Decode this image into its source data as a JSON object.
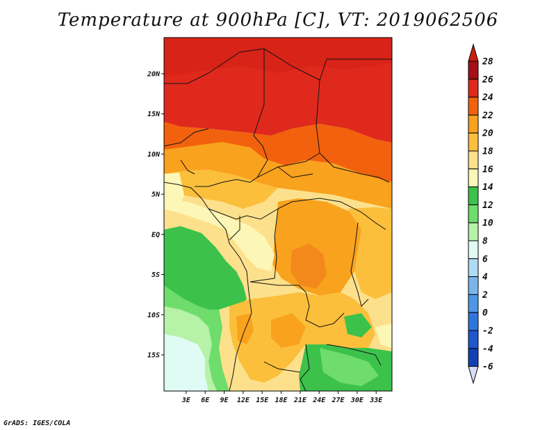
{
  "title": "Temperature at 900hPa [C], VT: 2019062506",
  "credit": "GrADS: IGES/COLA",
  "map": {
    "lat_range": [
      -19.5,
      24.5
    ],
    "lon_range": [
      -0.5,
      35.5
    ],
    "lat_ticks": [
      {
        "value": 20,
        "label": "20N"
      },
      {
        "value": 15,
        "label": "15N"
      },
      {
        "value": 10,
        "label": "10N"
      },
      {
        "value": 5,
        "label": "5N"
      },
      {
        "value": 0,
        "label": "EQ"
      },
      {
        "value": -5,
        "label": "5S"
      },
      {
        "value": -10,
        "label": "10S"
      },
      {
        "value": -15,
        "label": "15S"
      }
    ],
    "lon_ticks": [
      {
        "value": 3,
        "label": "3E"
      },
      {
        "value": 6,
        "label": "6E"
      },
      {
        "value": 9,
        "label": "9E"
      },
      {
        "value": 12,
        "label": "12E"
      },
      {
        "value": 15,
        "label": "15E"
      },
      {
        "value": 18,
        "label": "18E"
      },
      {
        "value": 21,
        "label": "21E"
      },
      {
        "value": 24,
        "label": "24E"
      },
      {
        "value": 27,
        "label": "27E"
      },
      {
        "value": 30,
        "label": "30E"
      },
      {
        "value": 33,
        "label": "33E"
      }
    ]
  },
  "colorbar": {
    "levels": [
      {
        "label": "28",
        "color": "#a50f15"
      },
      {
        "label": "26",
        "color": "#e0291d"
      },
      {
        "label": "24",
        "color": "#f2620e"
      },
      {
        "label": "22",
        "color": "#f9a21e"
      },
      {
        "label": "20",
        "color": "#fbbf3c"
      },
      {
        "label": "18",
        "color": "#fde08c"
      },
      {
        "label": "16",
        "color": "#fdf7b7"
      },
      {
        "label": "14",
        "color": "#3cc24b"
      },
      {
        "label": "12",
        "color": "#6edd6c"
      },
      {
        "label": "10",
        "color": "#b6f2a8"
      },
      {
        "label": "8",
        "color": "#e0fbf3"
      },
      {
        "label": "6",
        "color": "#aedcf4"
      },
      {
        "label": "4",
        "color": "#7ab6ec"
      },
      {
        "label": "2",
        "color": "#4d97e6"
      },
      {
        "label": "0",
        "color": "#2f76dc"
      },
      {
        "label": "-2",
        "color": "#1e58d0"
      },
      {
        "label": "-4",
        "color": "#1140b2"
      },
      {
        "label": "-6",
        "color": "#0b2a92"
      }
    ],
    "top_color": "#cc1e10",
    "bottom_color": "#d9dcf7"
  }
}
